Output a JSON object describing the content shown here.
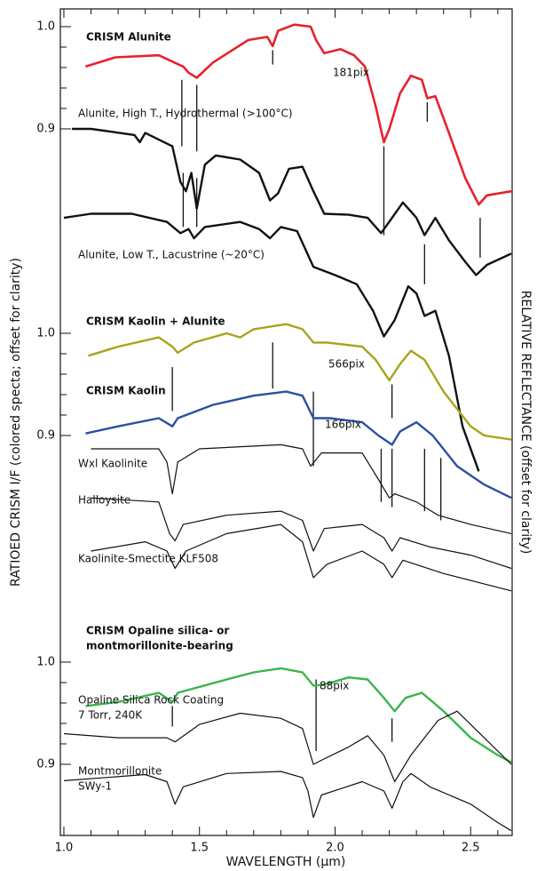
{
  "chart_data": {
    "type": "line",
    "xlabel": "WAVELENGTH (µm)",
    "ylabel": "RATIOED CRISM I/F (colored specta; offset for clarity)",
    "y2label": "RELATIVE REFLECTANCE (offset for clarity)",
    "xlim": [
      0.987,
      2.653
    ],
    "xticks": [
      {
        "value": 1,
        "label": "1.0"
      },
      {
        "value": 1.5,
        "label": "1.5"
      },
      {
        "value": 2,
        "label": "2.0"
      },
      {
        "value": 2.5,
        "label": "2.5"
      }
    ],
    "xminor": [
      1.1,
      1.2,
      1.3,
      1.4,
      1.6,
      1.7,
      1.8,
      1.9,
      2.1,
      2.2,
      2.3,
      2.4,
      2.6
    ],
    "panels": [
      {
        "ylim": [
          0.2087,
          1.0174
        ],
        "yticks": [
          {
            "value": 1,
            "label": "1.0"
          },
          {
            "value": 0.9,
            "label": "0.9"
          }
        ],
        "yminor": [
          0.98,
          0.96,
          0.94,
          0.92
        ],
        "markers": [
          [
            1.435,
            0.948,
            0.883
          ],
          [
            1.49,
            0.943,
            0.878
          ],
          [
            1.77,
            0.977,
            0.963
          ],
          [
            2.18,
            0.883,
            0.796
          ],
          [
            2.34,
            0.926,
            0.907
          ],
          [
            2.535,
            0.813,
            0.774
          ],
          [
            1.44,
            0.857,
            0.804
          ],
          [
            1.49,
            0.852,
            0.804
          ],
          [
            2.33,
            0.787,
            0.748
          ]
        ],
        "series": [
          {
            "name": "CRISM Alunite",
            "color": "#e8212b",
            "width": 2.6,
            "annotation": "181pix",
            "x": [
              1.08,
              1.19,
              1.35,
              1.44,
              1.46,
              1.49,
              1.55,
              1.68,
              1.75,
              1.77,
              1.79,
              1.85,
              1.91,
              1.93,
              1.96,
              2.02,
              2.07,
              2.11,
              2.15,
              2.18,
              2.2,
              2.24,
              2.28,
              2.32,
              2.34,
              2.37,
              2.42,
              2.48,
              2.53,
              2.56,
              2.65
            ],
            "values": [
              0.961,
              0.97,
              0.972,
              0.961,
              0.955,
              0.95,
              0.965,
              0.987,
              0.99,
              0.981,
              0.996,
              1.002,
              1.0,
              0.987,
              0.974,
              0.978,
              0.972,
              0.961,
              0.922,
              0.887,
              0.9,
              0.935,
              0.952,
              0.948,
              0.93,
              0.932,
              0.896,
              0.852,
              0.826,
              0.835,
              0.839
            ]
          },
          {
            "name": "Alunite, High T., Hydrothermal (>100°C)",
            "color": "#111111",
            "width": 2.4,
            "x": [
              1.03,
              1.1,
              1.26,
              1.28,
              1.3,
              1.4,
              1.43,
              1.45,
              1.47,
              1.49,
              1.52,
              1.56,
              1.65,
              1.72,
              1.76,
              1.79,
              1.83,
              1.88,
              1.92,
              1.96,
              2.05,
              2.12,
              2.17,
              2.21,
              2.25,
              2.3,
              2.33,
              2.37,
              2.42,
              2.48,
              2.52,
              2.56,
              2.65
            ],
            "values": [
              0.9,
              0.9,
              0.894,
              0.887,
              0.896,
              0.883,
              0.848,
              0.839,
              0.857,
              0.822,
              0.865,
              0.874,
              0.87,
              0.857,
              0.83,
              0.837,
              0.861,
              0.863,
              0.839,
              0.817,
              0.816,
              0.813,
              0.798,
              0.813,
              0.828,
              0.813,
              0.796,
              0.813,
              0.791,
              0.77,
              0.757,
              0.767,
              0.778
            ]
          },
          {
            "name": "Alunite, Low T., Lacustrine (~20°C)",
            "color": "#111111",
            "width": 2.4,
            "x": [
              1.0,
              1.1,
              1.25,
              1.38,
              1.43,
              1.46,
              1.48,
              1.52,
              1.65,
              1.72,
              1.76,
              1.8,
              1.86,
              1.92,
              2.0,
              2.08,
              2.14,
              2.18,
              2.22,
              2.27,
              2.3,
              2.33,
              2.37,
              2.42,
              2.47,
              2.53
            ],
            "values": [
              0.813,
              0.817,
              0.817,
              0.809,
              0.798,
              0.802,
              0.793,
              0.804,
              0.809,
              0.802,
              0.793,
              0.804,
              0.8,
              0.765,
              0.757,
              0.748,
              0.722,
              0.697,
              0.713,
              0.746,
              0.739,
              0.717,
              0.722,
              0.678,
              0.609,
              0.565
            ]
          }
        ]
      },
      {
        "ylim": [
          0.5087,
          1.3174
        ],
        "yticks": [
          {
            "value": 1,
            "label": "1.0"
          },
          {
            "value": 0.9,
            "label": "0.9"
          }
        ],
        "yminor": [
          0.98,
          0.96,
          0.94,
          0.92
        ],
        "markers": [
          [
            1.4,
            0.967,
            0.924
          ],
          [
            1.77,
            0.991,
            0.946
          ],
          [
            1.92,
            0.943,
            0.87
          ],
          [
            2.21,
            0.95,
            0.917
          ],
          [
            2.17,
            0.887,
            0.835
          ],
          [
            2.21,
            0.887,
            0.83
          ],
          [
            2.33,
            0.887,
            0.826
          ],
          [
            2.39,
            0.878,
            0.817
          ]
        ],
        "series": [
          {
            "name": "CRISM Kaolin + Alunite",
            "color": "#aaa31b",
            "width": 2.4,
            "annotation": "566pix",
            "x": [
              1.09,
              1.2,
              1.35,
              1.4,
              1.42,
              1.48,
              1.6,
              1.65,
              1.7,
              1.82,
              1.88,
              1.92,
              1.97,
              2.1,
              2.15,
              2.2,
              2.24,
              2.28,
              2.33,
              2.4,
              2.5,
              2.55,
              2.65
            ],
            "values": [
              0.978,
              0.987,
              0.996,
              0.987,
              0.981,
              0.991,
              1.0,
              0.996,
              1.004,
              1.009,
              1.004,
              0.991,
              0.991,
              0.987,
              0.974,
              0.954,
              0.97,
              0.983,
              0.974,
              0.943,
              0.909,
              0.9,
              0.896
            ]
          },
          {
            "name": "CRISM Kaolin",
            "color": "#2b4fa3",
            "width": 2.4,
            "annotation": "166pix",
            "x": [
              1.08,
              1.2,
              1.35,
              1.4,
              1.42,
              1.55,
              1.7,
              1.82,
              1.88,
              1.92,
              1.98,
              2.1,
              2.16,
              2.21,
              2.24,
              2.3,
              2.36,
              2.45,
              2.55,
              2.65
            ],
            "values": [
              0.902,
              0.909,
              0.917,
              0.909,
              0.917,
              0.93,
              0.939,
              0.943,
              0.939,
              0.917,
              0.917,
              0.913,
              0.9,
              0.891,
              0.904,
              0.913,
              0.9,
              0.87,
              0.852,
              0.839
            ]
          },
          {
            "name": "Wxl Kaolinite",
            "color": "#111111",
            "width": 1.2,
            "x": [
              1.1,
              1.35,
              1.38,
              1.4,
              1.42,
              1.5,
              1.8,
              1.88,
              1.91,
              1.95,
              2.1,
              2.16,
              2.2,
              2.22,
              2.3,
              2.38,
              2.5,
              2.65
            ],
            "values": [
              0.887,
              0.887,
              0.874,
              0.843,
              0.874,
              0.887,
              0.891,
              0.887,
              0.87,
              0.883,
              0.883,
              0.857,
              0.839,
              0.843,
              0.835,
              0.822,
              0.813,
              0.804
            ]
          },
          {
            "name": "Halloysite",
            "color": "#111111",
            "width": 1.2,
            "x": [
              1.1,
              1.35,
              1.39,
              1.41,
              1.44,
              1.6,
              1.8,
              1.88,
              1.92,
              1.96,
              2.1,
              2.18,
              2.21,
              2.24,
              2.35,
              2.5,
              2.65
            ],
            "values": [
              0.839,
              0.835,
              0.804,
              0.797,
              0.813,
              0.822,
              0.826,
              0.817,
              0.787,
              0.809,
              0.813,
              0.8,
              0.787,
              0.8,
              0.791,
              0.783,
              0.77
            ]
          },
          {
            "name": "Kaolinite-Smectite KLF508",
            "color": "#111111",
            "width": 1.2,
            "x": [
              1.1,
              1.3,
              1.38,
              1.41,
              1.45,
              1.6,
              1.8,
              1.88,
              1.92,
              1.97,
              2.1,
              2.18,
              2.21,
              2.25,
              2.4,
              2.65
            ],
            "values": [
              0.787,
              0.796,
              0.787,
              0.77,
              0.787,
              0.804,
              0.813,
              0.796,
              0.761,
              0.774,
              0.787,
              0.774,
              0.761,
              0.778,
              0.765,
              0.748
            ]
          }
        ]
      },
      {
        "ylim": [
          0.8304,
          1.6391
        ],
        "yticks": [
          {
            "value": 1,
            "label": "1.0"
          },
          {
            "value": 0.9,
            "label": "0.9"
          }
        ],
        "yminor": [
          0.98,
          0.96,
          0.94,
          0.92
        ],
        "markers": [
          [
            1.4,
            0.957,
            0.937
          ],
          [
            1.93,
            0.983,
            0.913
          ],
          [
            2.21,
            0.945,
            0.922
          ]
        ],
        "series": [
          {
            "name": [
              "CRISM Opaline silica- or",
              "montmorillonite-bearing"
            ],
            "color": "#3ab54a",
            "width": 2.4,
            "annotation": "88pix",
            "x": [
              1.08,
              1.2,
              1.35,
              1.4,
              1.42,
              1.6,
              1.7,
              1.8,
              1.88,
              1.92,
              1.96,
              2.05,
              2.12,
              2.18,
              2.22,
              2.26,
              2.32,
              2.4,
              2.5,
              2.6,
              2.65
            ],
            "values": [
              0.957,
              0.961,
              0.97,
              0.961,
              0.97,
              0.983,
              0.99,
              0.994,
              0.99,
              0.977,
              0.978,
              0.985,
              0.983,
              0.965,
              0.952,
              0.965,
              0.97,
              0.952,
              0.926,
              0.909,
              0.902
            ]
          },
          {
            "name": [
              "Opaline Silica Rock Coating",
              "7 Torr, 240K"
            ],
            "color": "#111111",
            "width": 1.2,
            "x": [
              1.0,
              1.2,
              1.38,
              1.41,
              1.5,
              1.65,
              1.8,
              1.88,
              1.92,
              1.95,
              2.05,
              2.12,
              2.18,
              2.22,
              2.28,
              2.38,
              2.45,
              2.55,
              2.65
            ],
            "values": [
              0.93,
              0.926,
              0.926,
              0.922,
              0.939,
              0.95,
              0.945,
              0.935,
              0.9,
              0.904,
              0.917,
              0.928,
              0.909,
              0.883,
              0.909,
              0.943,
              0.952,
              0.926,
              0.9
            ]
          },
          {
            "name": [
              "Montmorillonite",
              "SWy-1"
            ],
            "color": "#111111",
            "width": 1.2,
            "x": [
              1.0,
              1.3,
              1.38,
              1.41,
              1.44,
              1.6,
              1.8,
              1.88,
              1.9,
              1.92,
              1.95,
              2.1,
              2.18,
              2.21,
              2.25,
              2.28,
              2.35,
              2.5,
              2.6,
              2.65
            ],
            "values": [
              0.884,
              0.89,
              0.883,
              0.861,
              0.878,
              0.891,
              0.893,
              0.887,
              0.874,
              0.848,
              0.87,
              0.883,
              0.874,
              0.857,
              0.883,
              0.891,
              0.878,
              0.861,
              0.843,
              0.835
            ]
          }
        ]
      }
    ]
  }
}
